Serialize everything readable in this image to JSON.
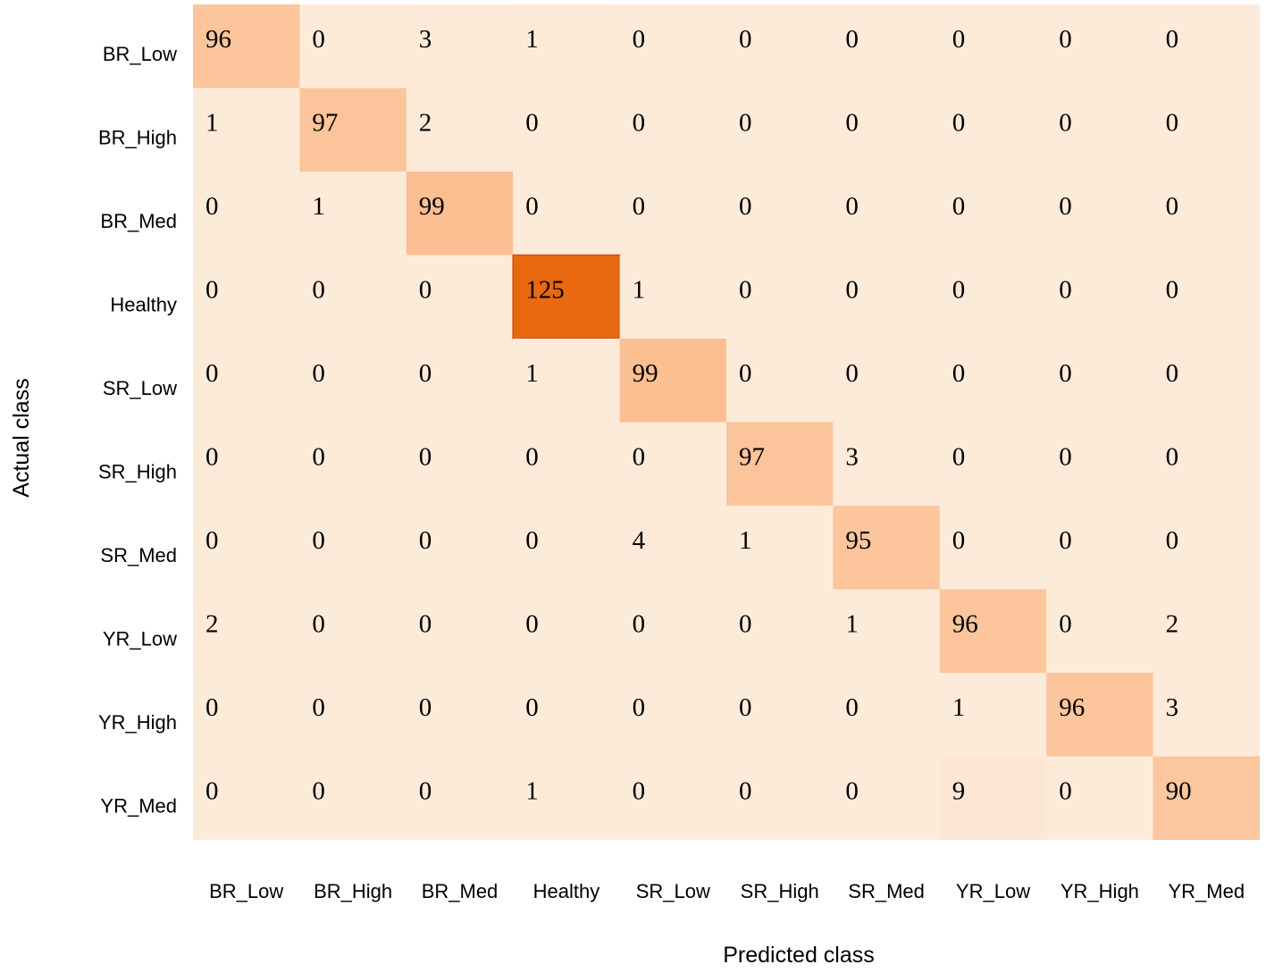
{
  "chart_data": {
    "type": "heatmap",
    "title": "",
    "xlabel": "Predicted class",
    "ylabel": "Actual class",
    "x_categories": [
      "BR_Low",
      "BR_High",
      "BR_Med",
      "Healthy",
      "SR_Low",
      "SR_High",
      "SR_Med",
      "YR_Low",
      "YR_High",
      "YR_Med"
    ],
    "y_categories": [
      "BR_Low",
      "BR_High",
      "BR_Med",
      "Healthy",
      "SR_Low",
      "SR_High",
      "SR_Med",
      "YR_Low",
      "YR_High",
      "YR_Med"
    ],
    "values": [
      [
        96,
        0,
        3,
        1,
        0,
        0,
        0,
        0,
        0,
        0
      ],
      [
        1,
        97,
        2,
        0,
        0,
        0,
        0,
        0,
        0,
        0
      ],
      [
        0,
        1,
        99,
        0,
        0,
        0,
        0,
        0,
        0,
        0
      ],
      [
        0,
        0,
        0,
        125,
        1,
        0,
        0,
        0,
        0,
        0
      ],
      [
        0,
        0,
        0,
        1,
        99,
        0,
        0,
        0,
        0,
        0
      ],
      [
        0,
        0,
        0,
        0,
        0,
        97,
        3,
        0,
        0,
        0
      ],
      [
        0,
        0,
        0,
        0,
        4,
        1,
        95,
        0,
        0,
        0
      ],
      [
        2,
        0,
        0,
        0,
        0,
        0,
        1,
        96,
        0,
        2
      ],
      [
        0,
        0,
        0,
        0,
        0,
        0,
        0,
        1,
        96,
        3
      ],
      [
        0,
        0,
        0,
        1,
        0,
        0,
        0,
        9,
        0,
        90
      ]
    ],
    "grid": false,
    "legend": "none",
    "colors": {
      "low": "#fdebda",
      "mid": "#fcc49a",
      "high": "#e8690f",
      "high_border": "#d64a1e"
    }
  }
}
